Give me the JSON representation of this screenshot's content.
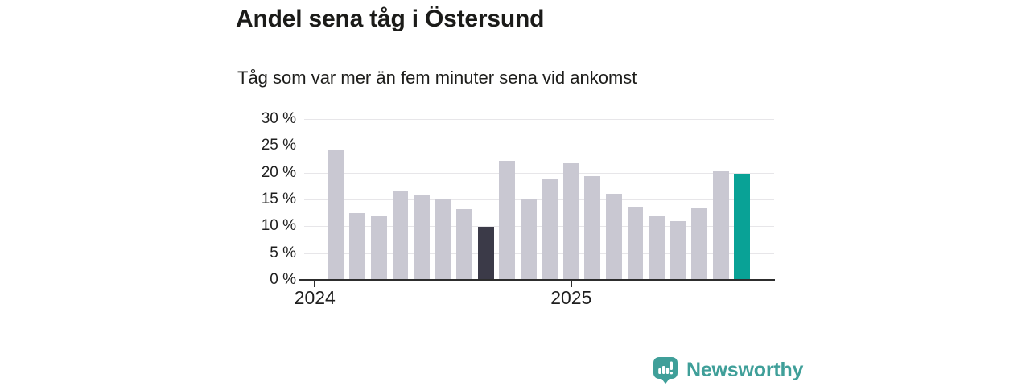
{
  "header": {
    "title": "Andel sena tåg i Östersund",
    "subtitle": "Tåg som var mer än fem minuter sena vid ankomst"
  },
  "chart_data": {
    "type": "bar",
    "title": "Andel sena tåg i Östersund",
    "subtitle": "Tåg som var mer än fem minuter sena vid ankomst",
    "categories": [
      "2024-02",
      "2024-03",
      "2024-04",
      "2024-05",
      "2024-06",
      "2024-07",
      "2024-08",
      "2024-09",
      "2024-10",
      "2024-11",
      "2024-12",
      "2025-01",
      "2025-02",
      "2025-03",
      "2025-04",
      "2025-05",
      "2025-06",
      "2025-07",
      "2025-08",
      "2025-09"
    ],
    "values": [
      24.3,
      12.4,
      11.9,
      16.6,
      15.7,
      15.2,
      13.2,
      9.9,
      22.2,
      15.2,
      18.7,
      21.7,
      19.3,
      16.0,
      13.5,
      12.0,
      11.0,
      13.4,
      20.3,
      19.8
    ],
    "unit": "%",
    "ylim": [
      0,
      30
    ],
    "yticks": [
      30,
      25,
      20,
      15,
      10,
      5,
      0
    ],
    "ytick_suffix": " %",
    "xticks": [
      {
        "label": "2024",
        "slot": 0
      },
      {
        "label": "2025",
        "slot": 12
      }
    ],
    "total_slots": 22,
    "first_bar_slot": 1,
    "bar_width_fraction": 0.75,
    "highlight_dark_index": 7,
    "highlight_accent_index": 19,
    "grid": "horizontal",
    "legend": "none",
    "colors": {
      "bar_default": "#c9c8d2",
      "bar_dark": "#3b3a48",
      "bar_accent": "#09a296",
      "gridline": "#e7e6e9",
      "axis": "#2d2d2d",
      "tick_label": "#1f1f1f"
    }
  },
  "branding": {
    "logo_text": "Newsworthy",
    "logo_color": "#3f9f99",
    "logo_icon": "newsworthy-pin-barchart-icon"
  }
}
